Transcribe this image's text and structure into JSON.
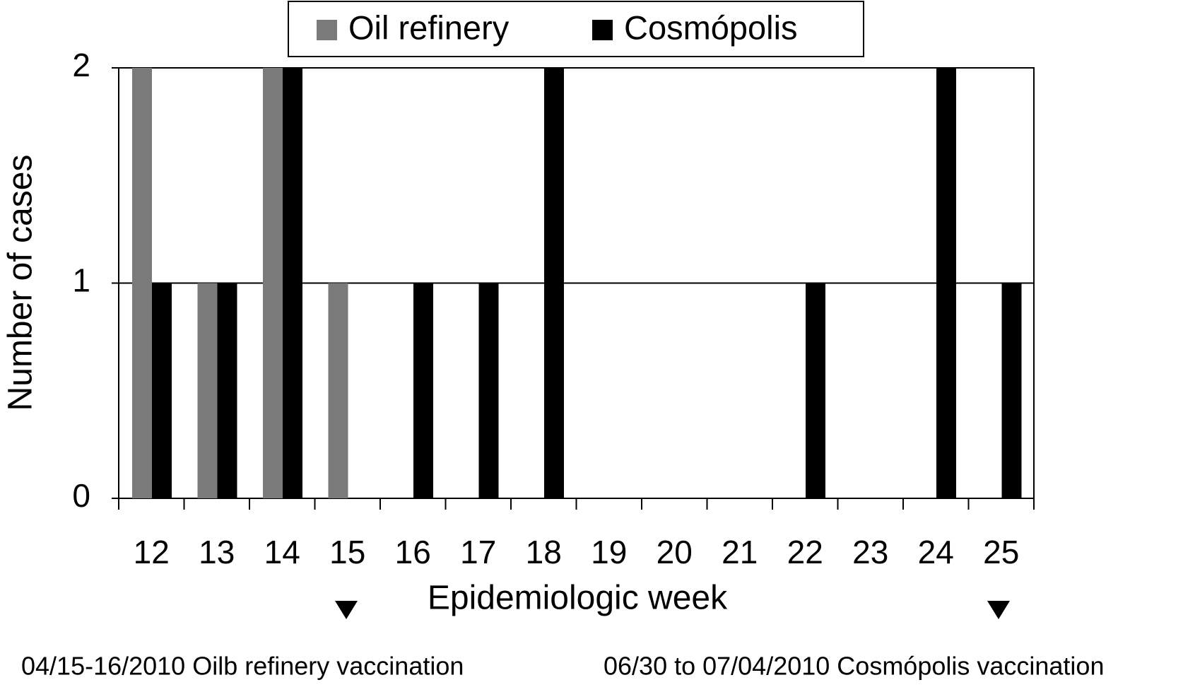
{
  "chart_data": {
    "type": "bar",
    "x_label": "Epidemiologic week",
    "y_label": "Number of cases",
    "categories": [
      "12",
      "13",
      "14",
      "15",
      "16",
      "17",
      "18",
      "19",
      "20",
      "21",
      "22",
      "23",
      "24",
      "25"
    ],
    "series": [
      {
        "name": "Oil refinery",
        "color": "#7a7a7a",
        "values": [
          2,
          1,
          2,
          1,
          0,
          0,
          0,
          0,
          0,
          0,
          0,
          0,
          0,
          0
        ]
      },
      {
        "name": "Cosmópolis",
        "color": "#000000",
        "values": [
          1,
          1,
          2,
          0,
          1,
          1,
          2,
          0,
          0,
          0,
          1,
          0,
          2,
          1
        ]
      }
    ],
    "ylim": [
      0,
      2
    ],
    "yticks": [
      0,
      1,
      2
    ],
    "grid": true,
    "legend": "top",
    "annotations": [
      "04/15-16/2010 Oilb refinery vaccination",
      "06/30 to 07/04/2010 Cosmópolis vaccination"
    ]
  }
}
